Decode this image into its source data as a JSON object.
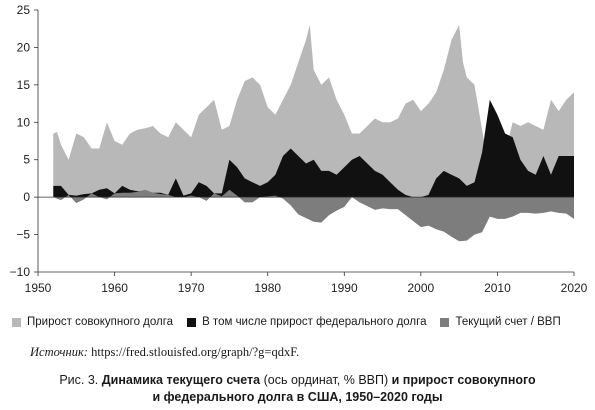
{
  "colors": {
    "total_debt": "#b8b8b8",
    "federal_debt": "#111111",
    "current_account": "#7d7d7d"
  },
  "legend": [
    {
      "label": "Прирост совокупного долга",
      "color": "#b8b8b8"
    },
    {
      "label": "В том числе прирост федерального долга",
      "color": "#111111"
    },
    {
      "label": "Текущий счет / ВВП",
      "color": "#7d7d7d"
    }
  ],
  "source": {
    "label": "Источник:",
    "text": "https://fred.stlouisfed.org/graph/?g=qdxF."
  },
  "caption": {
    "prefix": "Рис. 3.",
    "bold1": "Динамика текущего счета",
    "normal": "(ось ординат, % ВВП)",
    "bold2": "и прирост совокупного",
    "line2": "и федерального долга в США, 1950–2020 годы"
  },
  "chart_data": {
    "type": "area",
    "xlim": [
      1950,
      2020
    ],
    "ylim": [
      -10,
      25
    ],
    "xticks": [
      "1950",
      "1960",
      "1970",
      "1980",
      "1990",
      "2000",
      "2010",
      "2020"
    ],
    "yticks": [
      "25",
      "20",
      "15",
      "10",
      "5",
      "0",
      "−5",
      "−10"
    ],
    "grid": false,
    "legend_position": "bottom",
    "series": [
      {
        "name": "Прирост совокупного долга",
        "x": [
          1952,
          1952.5,
          1953,
          1954,
          1955,
          1956,
          1957,
          1958,
          1959,
          1960,
          1961,
          1962,
          1963,
          1964,
          1965,
          1966,
          1967,
          1968,
          1969,
          1970,
          1971,
          1972,
          1973,
          1974,
          1975,
          1976,
          1977,
          1978,
          1979,
          1980,
          1981,
          1982,
          1983,
          1984,
          1985,
          1985.5,
          1986,
          1987,
          1988,
          1989,
          1990,
          1991,
          1992,
          1993,
          1994,
          1995,
          1996,
          1997,
          1998,
          1999,
          2000,
          2001,
          2002,
          2003,
          2004,
          2005,
          2005.5,
          2006,
          2007,
          2008,
          2009,
          2010,
          2011,
          2012,
          2013,
          2014,
          2015,
          2016,
          2017,
          2018,
          2019,
          2020
        ],
        "values": [
          8.5,
          8.7,
          7.0,
          5.0,
          8.5,
          8.0,
          6.5,
          6.5,
          10.0,
          7.5,
          7.0,
          8.5,
          9.0,
          9.2,
          9.5,
          8.5,
          8.0,
          10.0,
          9.0,
          8.0,
          11.0,
          12.0,
          13.0,
          9.0,
          9.5,
          13.0,
          15.5,
          16.0,
          15.0,
          12.0,
          11.0,
          13.0,
          15.0,
          18.0,
          21.0,
          23.0,
          17.0,
          15.0,
          16.0,
          13.0,
          11.0,
          8.5,
          8.5,
          9.5,
          10.5,
          10.0,
          10.0,
          10.5,
          12.5,
          13.0,
          11.5,
          12.5,
          14.0,
          17.0,
          21.0,
          23.0,
          18.0,
          16.0,
          15.0,
          9.0,
          3.0,
          7.0,
          6.0,
          10.0,
          9.5,
          10.0,
          9.5,
          9.0,
          13.0,
          11.5,
          13.0,
          14.0
        ]
      },
      {
        "name": "В том числе прирост федерального долга",
        "x": [
          1952,
          1953,
          1954,
          1955,
          1956,
          1957,
          1958,
          1959,
          1960,
          1961,
          1962,
          1963,
          1964,
          1965,
          1966,
          1967,
          1968,
          1969,
          1970,
          1971,
          1972,
          1973,
          1974,
          1975,
          1976,
          1977,
          1978,
          1979,
          1980,
          1981,
          1982,
          1983,
          1984,
          1985,
          1986,
          1987,
          1988,
          1989,
          1990,
          1991,
          1992,
          1993,
          1994,
          1995,
          1996,
          1997,
          1998,
          1999,
          2000,
          2001,
          2002,
          2003,
          2004,
          2005,
          2006,
          2007,
          2008,
          2009,
          2010,
          2011,
          2012,
          2013,
          2014,
          2015,
          2016,
          2017,
          2018,
          2019,
          2020
        ],
        "values": [
          1.5,
          1.5,
          0.3,
          0.2,
          0.4,
          0.5,
          1.0,
          1.2,
          0.5,
          1.5,
          1.0,
          0.8,
          0.8,
          0.6,
          0.6,
          0.3,
          2.5,
          0.2,
          0.5,
          2.0,
          1.5,
          0.5,
          0.5,
          5.0,
          4.0,
          2.5,
          2.0,
          1.5,
          2.0,
          3.0,
          5.5,
          6.5,
          5.5,
          4.5,
          5.0,
          3.5,
          3.5,
          3.0,
          4.0,
          5.0,
          5.5,
          4.5,
          3.5,
          3.0,
          2.0,
          1.0,
          0.3,
          0.0,
          0.0,
          0.3,
          2.5,
          3.5,
          3.0,
          2.5,
          1.5,
          2.0,
          6.0,
          13.0,
          11.0,
          8.5,
          8.0,
          5.0,
          3.5,
          3.0,
          5.5,
          3.0,
          5.5,
          5.5,
          5.5
        ]
      },
      {
        "name": "Текущий счет / ВВП",
        "x": [
          1952,
          1953,
          1954,
          1955,
          1956,
          1957,
          1958,
          1959,
          1960,
          1961,
          1962,
          1963,
          1964,
          1965,
          1966,
          1967,
          1968,
          1969,
          1970,
          1971,
          1972,
          1973,
          1974,
          1975,
          1976,
          1977,
          1978,
          1979,
          1980,
          1981,
          1982,
          1983,
          1984,
          1985,
          1986,
          1987,
          1988,
          1989,
          1990,
          1991,
          1992,
          1993,
          1994,
          1995,
          1996,
          1997,
          1998,
          1999,
          2000,
          2001,
          2002,
          2003,
          2004,
          2005,
          2006,
          2007,
          2008,
          2009,
          2010,
          2011,
          2012,
          2013,
          2014,
          2015,
          2016,
          2017,
          2018,
          2019,
          2020
        ],
        "values": [
          0.0,
          -0.4,
          0.3,
          -0.8,
          -0.3,
          0.5,
          0.0,
          -0.3,
          0.5,
          0.6,
          0.6,
          0.7,
          1.0,
          0.6,
          0.4,
          0.3,
          0.0,
          0.0,
          0.2,
          0.0,
          -0.5,
          0.5,
          0.1,
          1.0,
          0.2,
          -0.7,
          -0.7,
          0.0,
          0.1,
          0.2,
          -0.2,
          -1.1,
          -2.3,
          -2.8,
          -3.3,
          -3.4,
          -2.4,
          -1.8,
          -1.3,
          0.0,
          -0.7,
          -1.2,
          -1.7,
          -1.5,
          -1.6,
          -1.6,
          -2.4,
          -3.2,
          -4.0,
          -3.8,
          -4.3,
          -4.6,
          -5.3,
          -5.9,
          -5.8,
          -5.0,
          -4.7,
          -2.6,
          -2.9,
          -2.9,
          -2.6,
          -2.1,
          -2.1,
          -2.2,
          -2.1,
          -1.9,
          -2.1,
          -2.2,
          -2.9
        ]
      }
    ]
  }
}
